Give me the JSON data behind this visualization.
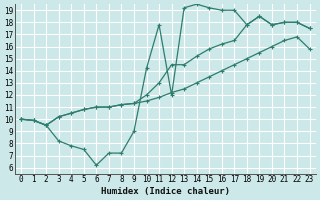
{
  "title": "",
  "xlabel": "Humidex (Indice chaleur)",
  "ylabel": "",
  "background_color": "#cce8e8",
  "grid_color": "#ffffff",
  "line_color": "#2e7d6e",
  "xlim": [
    -0.5,
    23.5
  ],
  "ylim": [
    5.5,
    19.5
  ],
  "xticks": [
    0,
    1,
    2,
    3,
    4,
    5,
    6,
    7,
    8,
    9,
    10,
    11,
    12,
    13,
    14,
    15,
    16,
    17,
    18,
    19,
    20,
    21,
    22,
    23
  ],
  "yticks": [
    6,
    7,
    8,
    9,
    10,
    11,
    12,
    13,
    14,
    15,
    16,
    17,
    18,
    19
  ],
  "line1_x": [
    0,
    1,
    2,
    3,
    4,
    5,
    6,
    7,
    8,
    9,
    10,
    11,
    12,
    13,
    14,
    15,
    16,
    17,
    18,
    19,
    20,
    21,
    22,
    23
  ],
  "line1_y": [
    10.0,
    9.9,
    9.5,
    10.2,
    10.5,
    10.8,
    11.0,
    11.0,
    11.2,
    11.3,
    11.5,
    11.8,
    12.2,
    12.5,
    13.0,
    13.5,
    14.0,
    14.5,
    15.0,
    15.5,
    16.0,
    16.5,
    16.8,
    15.8
  ],
  "line2_x": [
    0,
    1,
    2,
    3,
    4,
    5,
    6,
    7,
    8,
    9,
    10,
    11,
    12,
    13,
    14,
    15,
    16,
    17,
    18,
    19,
    20,
    21,
    22,
    23
  ],
  "line2_y": [
    10.0,
    9.9,
    9.5,
    8.2,
    7.8,
    7.5,
    6.2,
    7.2,
    7.2,
    9.0,
    14.2,
    17.8,
    12.0,
    19.2,
    19.5,
    19.2,
    19.0,
    19.0,
    17.8,
    18.5,
    17.8,
    18.0,
    18.0,
    17.5
  ],
  "line3_x": [
    0,
    1,
    2,
    3,
    4,
    5,
    6,
    7,
    8,
    9,
    10,
    11,
    12,
    13,
    14,
    15,
    16,
    17,
    18,
    19,
    20,
    21,
    22,
    23
  ],
  "line3_y": [
    10.0,
    9.9,
    9.5,
    10.2,
    10.5,
    10.8,
    11.0,
    11.0,
    11.2,
    11.3,
    12.0,
    13.0,
    14.5,
    14.5,
    15.2,
    15.8,
    16.2,
    16.5,
    17.8,
    18.5,
    17.8,
    18.0,
    18.0,
    17.5
  ]
}
